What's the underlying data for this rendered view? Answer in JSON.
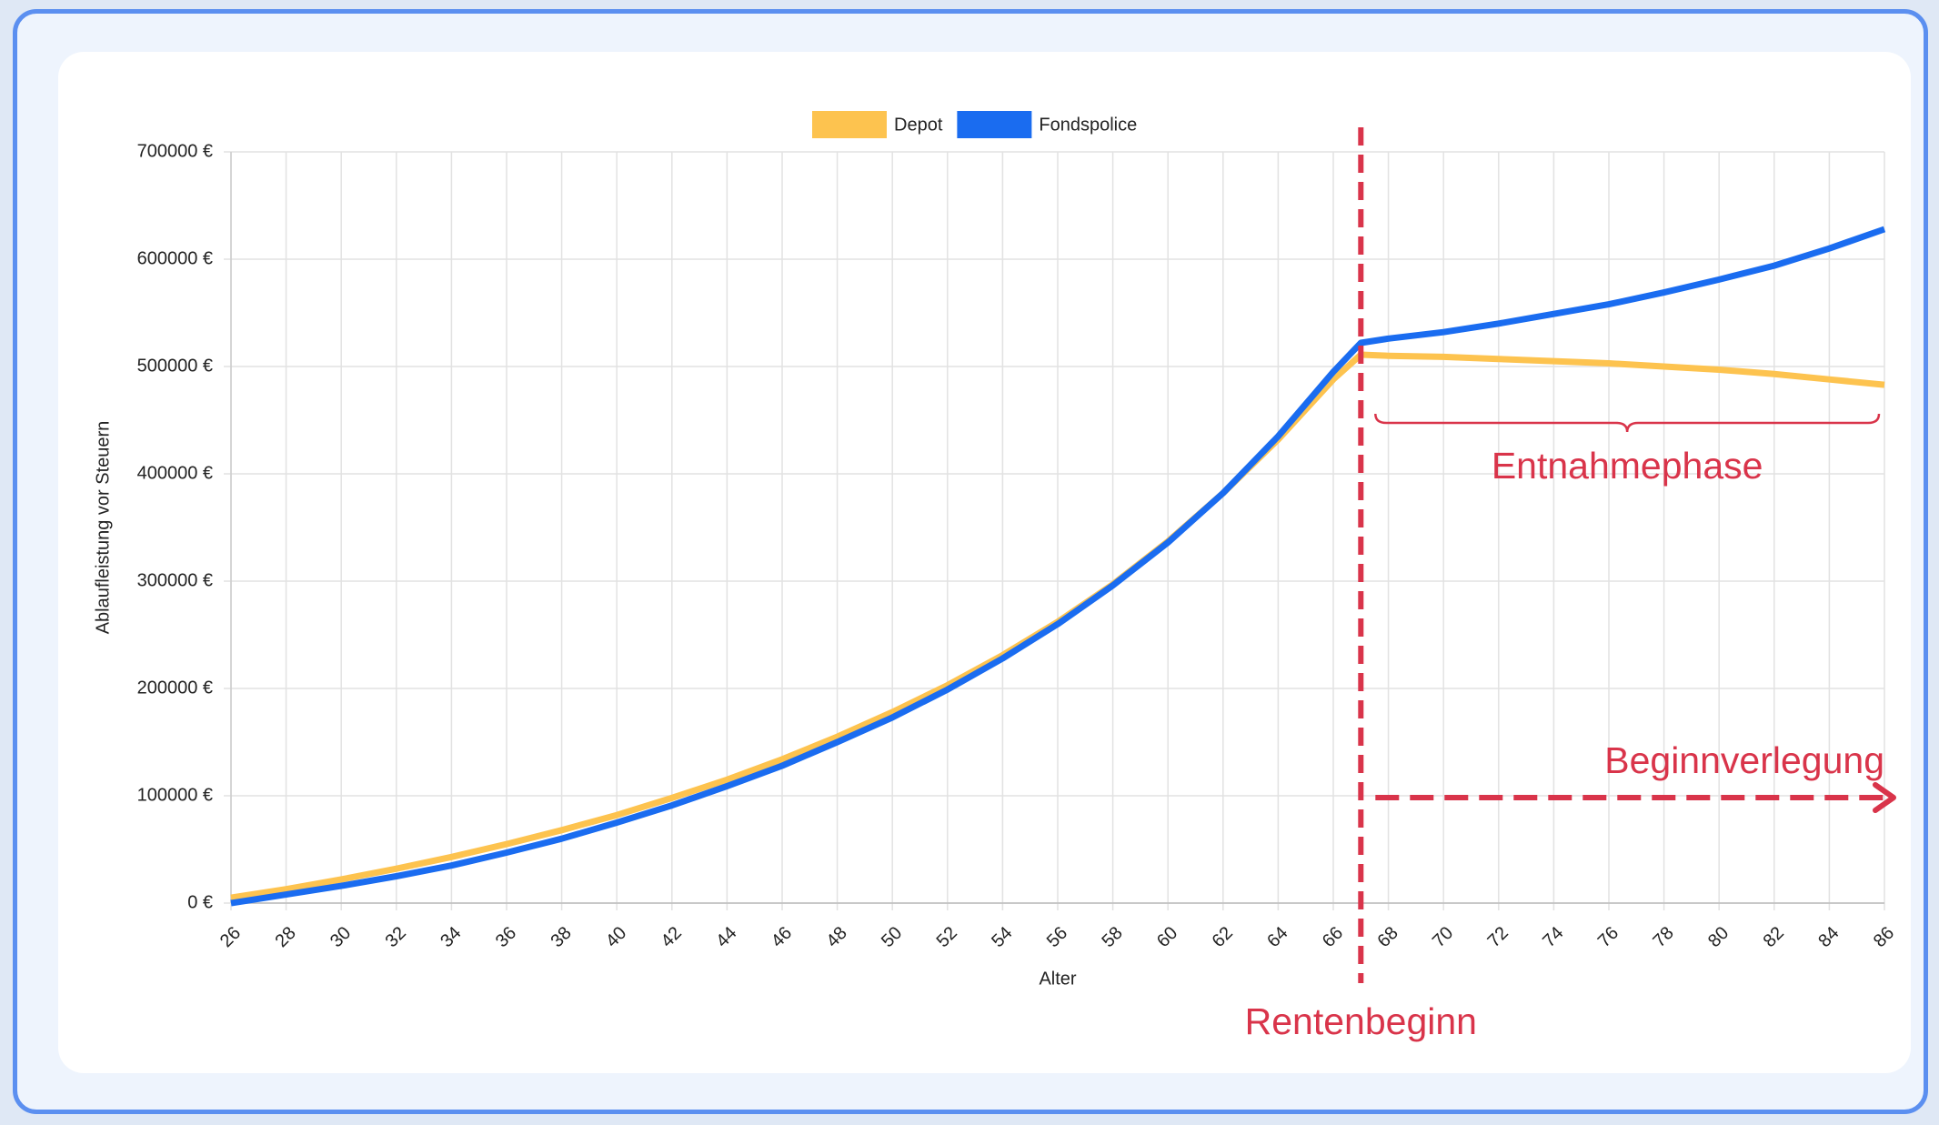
{
  "chart_data": {
    "type": "line",
    "x_label": "Alter",
    "y_label": "Ablaufleistung vor Steuern",
    "x": [
      26,
      28,
      30,
      32,
      34,
      36,
      38,
      40,
      42,
      44,
      46,
      48,
      50,
      52,
      54,
      56,
      58,
      60,
      62,
      64,
      66,
      67,
      68,
      70,
      72,
      74,
      76,
      78,
      80,
      82,
      84,
      86
    ],
    "series": [
      {
        "name": "Depot",
        "color": "#fdc34f",
        "values": [
          5000,
          13000,
          22000,
          32000,
          43000,
          55000,
          68000,
          82000,
          98000,
          115000,
          134000,
          155000,
          178000,
          203000,
          231000,
          262000,
          297000,
          337000,
          382000,
          432000,
          488000,
          511000,
          510000,
          509000,
          507000,
          505000,
          503000,
          500000,
          497000,
          493000,
          488000,
          483000
        ]
      },
      {
        "name": "Fondspolice",
        "color": "#1a6cf0",
        "values": [
          0,
          8000,
          16000,
          25000,
          35000,
          47000,
          60000,
          75000,
          91000,
          109000,
          128000,
          150000,
          173000,
          199000,
          228000,
          260000,
          296000,
          336000,
          382000,
          435000,
          495000,
          522000,
          526000,
          532000,
          540000,
          549000,
          558000,
          569000,
          581000,
          594000,
          610000,
          628000
        ]
      }
    ],
    "xlim": [
      26,
      86
    ],
    "xticks": [
      26,
      28,
      30,
      32,
      34,
      36,
      38,
      40,
      42,
      44,
      46,
      48,
      50,
      52,
      54,
      56,
      58,
      60,
      62,
      64,
      66,
      68,
      70,
      72,
      74,
      76,
      78,
      80,
      82,
      84,
      86
    ],
    "ylim": [
      0,
      700000
    ],
    "yticks": [
      {
        "value": 0,
        "label": "0 €"
      },
      {
        "value": 100000,
        "label": "100000 €"
      },
      {
        "value": 200000,
        "label": "200000 €"
      },
      {
        "value": 300000,
        "label": "300000 €"
      },
      {
        "value": 400000,
        "label": "400000 €"
      },
      {
        "value": 500000,
        "label": "500000 €"
      },
      {
        "value": 600000,
        "label": "600000 €"
      },
      {
        "value": 700000,
        "label": "700000 €"
      }
    ],
    "grid": true,
    "legend": "top",
    "annotations": [
      {
        "text": "Rentenbeginn",
        "x": 67
      },
      {
        "text": "Entnahmephase",
        "x": [
          67,
          86
        ]
      },
      {
        "text": "Beginnverlegung",
        "x": [
          67,
          86
        ]
      }
    ]
  }
}
